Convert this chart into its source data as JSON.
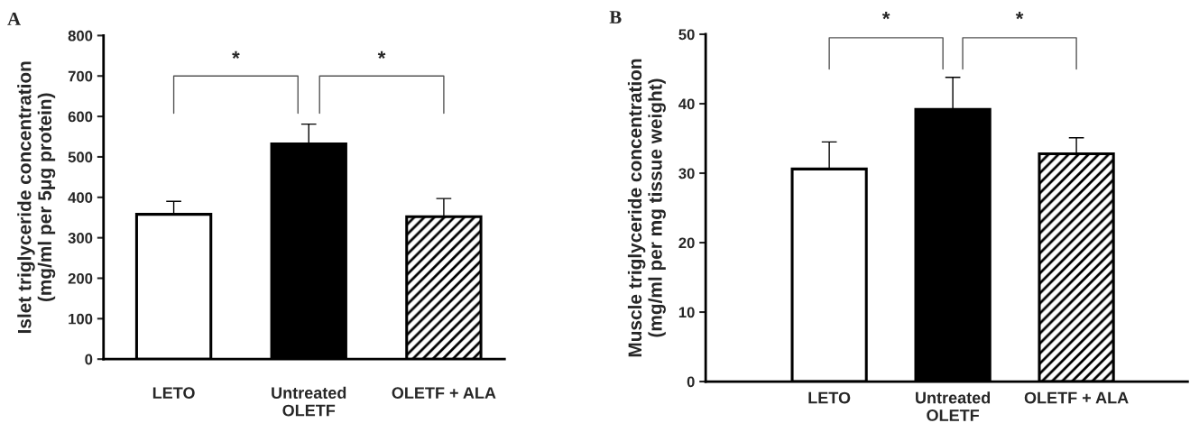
{
  "chart_data": [
    {
      "type": "bar",
      "ylabel": "Islet triglyceride concentration\n(mg/ml per 5μg protein)",
      "categories": [
        "LETO",
        "Untreated\nOLETF",
        "OLETF + ALA"
      ],
      "values": [
        358,
        532,
        352
      ],
      "errors": [
        [
          358,
          390
        ],
        [
          532,
          581
        ],
        [
          352,
          397
        ]
      ],
      "colors": [
        "#ffffff",
        "#000000",
        "#000000"
      ],
      "ylim": [
        0,
        800
      ],
      "yticks": [
        0,
        100,
        200,
        300,
        400,
        500,
        600,
        700,
        800
      ],
      "grid": false,
      "annotations": [
        "A",
        "*",
        "*"
      ]
    },
    {
      "type": "bar",
      "ylabel": "Muscle triglyceride concentration\n(mg/ml per mg tissue weight)",
      "categories": [
        "LETO",
        "Untreated\nOLETF",
        "OLETF + ALA"
      ],
      "values": [
        30.6,
        39.2,
        32.8
      ],
      "errors": [
        [
          30.6,
          34.5
        ],
        [
          39.2,
          43.8
        ],
        [
          32.8,
          35.1
        ]
      ],
      "colors": [
        "#ffffff",
        "#000000",
        "#000000"
      ],
      "ylim": [
        0,
        50
      ],
      "yticks": [
        0,
        10,
        20,
        30,
        40,
        50
      ],
      "grid": false,
      "annotations": [
        "B",
        "*",
        "*"
      ]
    }
  ]
}
